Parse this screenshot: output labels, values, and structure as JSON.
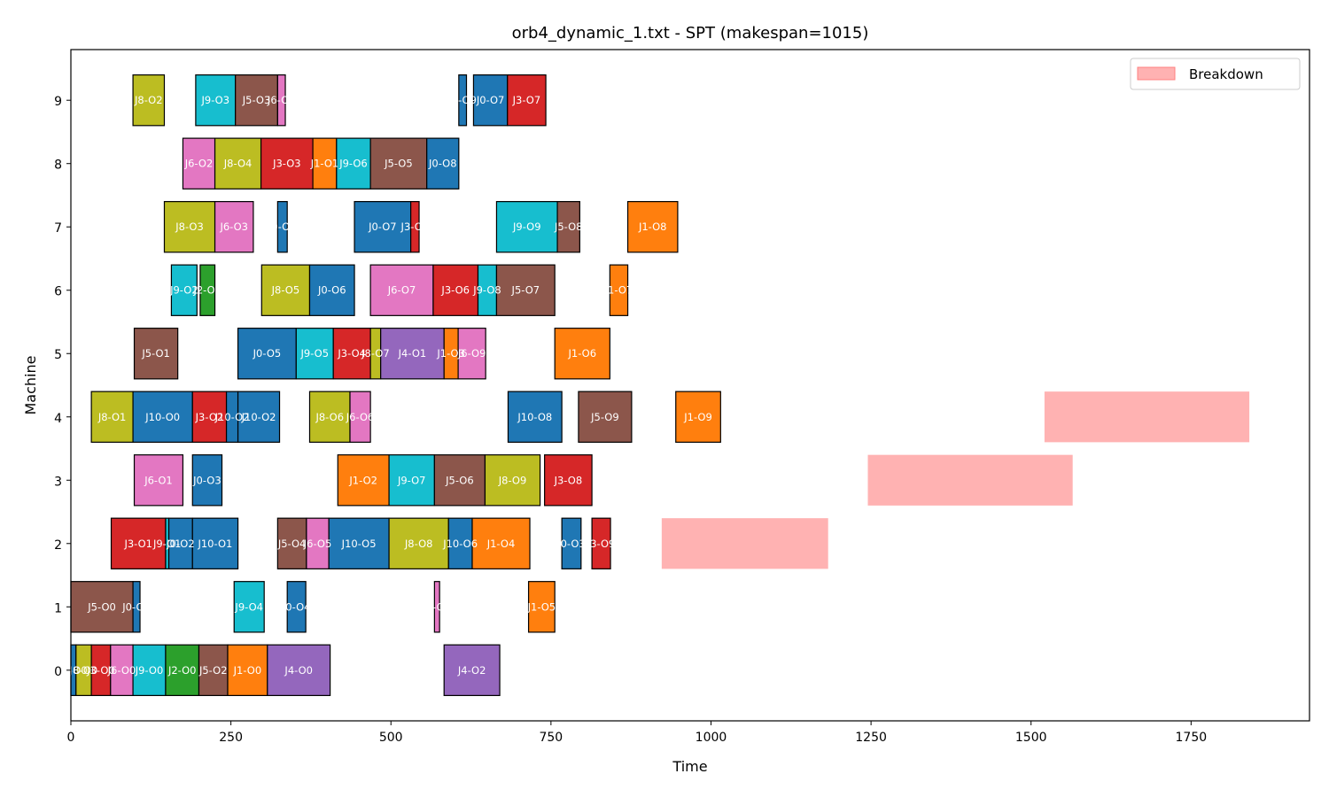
{
  "chart_data": {
    "type": "gantt",
    "title": "orb4_dynamic_1.txt - SPT (makespan=1015)",
    "xlabel": "Time",
    "ylabel": "Machine",
    "xlim": [
      0,
      1935
    ],
    "ylim": [
      -0.8,
      9.8
    ],
    "xticks": [
      0,
      250,
      500,
      750,
      1000,
      1250,
      1500,
      1750
    ],
    "yticks": [
      0,
      1,
      2,
      3,
      4,
      5,
      6,
      7,
      8,
      9
    ],
    "grid": false,
    "legend": {
      "position": "top-right",
      "entries": [
        {
          "label": "Breakdown",
          "color": "#ffb2b2"
        }
      ]
    },
    "job_colors": {
      "J0": "#1f77b4",
      "J1": "#ff7f0e",
      "J2": "#2ca02c",
      "J3": "#d62728",
      "J4": "#9467bd",
      "J5": "#8c564b",
      "J6": "#e377c2",
      "J7": "#7f7f7f",
      "J8": "#bcbd22",
      "J9": "#17becf",
      "J10": "#1f77b4"
    },
    "operations": [
      {
        "machine": 0,
        "job": "J0",
        "start": 0,
        "end": 8,
        "label": "J0-O0"
      },
      {
        "machine": 0,
        "job": "J8",
        "start": 8,
        "end": 32,
        "label": "J8-O0"
      },
      {
        "machine": 0,
        "job": "J3",
        "start": 32,
        "end": 62,
        "label": "J3-O0"
      },
      {
        "machine": 0,
        "job": "J6",
        "start": 62,
        "end": 97,
        "label": "J6-O0"
      },
      {
        "machine": 0,
        "job": "J9",
        "start": 97,
        "end": 148,
        "label": "J9-O0"
      },
      {
        "machine": 0,
        "job": "J2",
        "start": 148,
        "end": 200,
        "label": "J2-O0"
      },
      {
        "machine": 0,
        "job": "J5",
        "start": 200,
        "end": 245,
        "label": "J5-O2"
      },
      {
        "machine": 0,
        "job": "J1",
        "start": 245,
        "end": 307,
        "label": "J1-O0"
      },
      {
        "machine": 0,
        "job": "J4",
        "start": 307,
        "end": 405,
        "label": "J4-O0"
      },
      {
        "machine": 0,
        "job": "J4",
        "start": 583,
        "end": 670,
        "label": "J4-O2"
      },
      {
        "machine": 1,
        "job": "J5",
        "start": 0,
        "end": 97,
        "label": "J5-O0"
      },
      {
        "machine": 1,
        "job": "J0",
        "start": 97,
        "end": 108,
        "label": "J0-O1"
      },
      {
        "machine": 1,
        "job": "J9",
        "start": 255,
        "end": 302,
        "label": "J9-O4"
      },
      {
        "machine": 1,
        "job": "J0",
        "start": 338,
        "end": 367,
        "label": "J0-O4"
      },
      {
        "machine": 1,
        "job": "J6",
        "start": 568,
        "end": 576,
        "label": "J6-O6"
      },
      {
        "machine": 1,
        "job": "J1",
        "start": 715,
        "end": 756,
        "label": "J1-O5"
      },
      {
        "machine": 2,
        "job": "J3",
        "start": 63,
        "end": 148,
        "label": "J3-O1"
      },
      {
        "machine": 2,
        "job": "J9",
        "start": 148,
        "end": 153,
        "label": "J9-O1"
      },
      {
        "machine": 2,
        "job": "J0",
        "start": 153,
        "end": 190,
        "label": "J0-O2"
      },
      {
        "machine": 2,
        "job": "J10",
        "start": 190,
        "end": 261,
        "label": "J10-O1"
      },
      {
        "machine": 2,
        "job": "J5",
        "start": 323,
        "end": 368,
        "label": "J5-O4"
      },
      {
        "machine": 2,
        "job": "J6",
        "start": 368,
        "end": 403,
        "label": "J6-O5"
      },
      {
        "machine": 2,
        "job": "J10",
        "start": 403,
        "end": 497,
        "label": "J10-O5"
      },
      {
        "machine": 2,
        "job": "J8",
        "start": 497,
        "end": 590,
        "label": "J8-O8"
      },
      {
        "machine": 2,
        "job": "J10",
        "start": 590,
        "end": 627,
        "label": "J10-O6"
      },
      {
        "machine": 2,
        "job": "J1",
        "start": 627,
        "end": 717,
        "label": "J1-O4"
      },
      {
        "machine": 2,
        "job": "J0",
        "start": 767,
        "end": 797,
        "label": "J0-O3"
      },
      {
        "machine": 2,
        "job": "J3",
        "start": 814,
        "end": 843,
        "label": "J3-O9"
      },
      {
        "machine": 3,
        "job": "J6",
        "start": 99,
        "end": 175,
        "label": "J6-O1"
      },
      {
        "machine": 3,
        "job": "J0",
        "start": 190,
        "end": 236,
        "label": "J0-O3"
      },
      {
        "machine": 3,
        "job": "J1",
        "start": 417,
        "end": 497,
        "label": "J1-O2"
      },
      {
        "machine": 3,
        "job": "J9",
        "start": 497,
        "end": 568,
        "label": "J9-O7"
      },
      {
        "machine": 3,
        "job": "J5",
        "start": 568,
        "end": 647,
        "label": "J5-O6"
      },
      {
        "machine": 3,
        "job": "J8",
        "start": 647,
        "end": 733,
        "label": "J8-O9"
      },
      {
        "machine": 3,
        "job": "J3",
        "start": 740,
        "end": 814,
        "label": "J3-O8"
      },
      {
        "machine": 4,
        "job": "J8",
        "start": 32,
        "end": 97,
        "label": "J8-O1"
      },
      {
        "machine": 4,
        "job": "J10",
        "start": 97,
        "end": 190,
        "label": "J10-O0"
      },
      {
        "machine": 4,
        "job": "J3",
        "start": 190,
        "end": 243,
        "label": "J3-O2"
      },
      {
        "machine": 4,
        "job": "J10",
        "start": 243,
        "end": 261,
        "label": "J10-O2"
      },
      {
        "machine": 4,
        "job": "J10",
        "start": 261,
        "end": 326,
        "label": "J10-O2"
      },
      {
        "machine": 4,
        "job": "J8",
        "start": 373,
        "end": 436,
        "label": "J8-O6"
      },
      {
        "machine": 4,
        "job": "J6",
        "start": 436,
        "end": 468,
        "label": "J6-O6"
      },
      {
        "machine": 4,
        "job": "J10",
        "start": 683,
        "end": 767,
        "label": "J10-O8"
      },
      {
        "machine": 4,
        "job": "J5",
        "start": 793,
        "end": 876,
        "label": "J5-O9"
      },
      {
        "machine": 4,
        "job": "J1",
        "start": 945,
        "end": 1015,
        "label": "J1-O9"
      },
      {
        "machine": 5,
        "job": "J5",
        "start": 99,
        "end": 167,
        "label": "J5-O1"
      },
      {
        "machine": 5,
        "job": "J0",
        "start": 261,
        "end": 352,
        "label": "J0-O5"
      },
      {
        "machine": 5,
        "job": "J9",
        "start": 352,
        "end": 410,
        "label": "J9-O5"
      },
      {
        "machine": 5,
        "job": "J3",
        "start": 410,
        "end": 468,
        "label": "J3-O4"
      },
      {
        "machine": 5,
        "job": "J8",
        "start": 468,
        "end": 484,
        "label": "J8-O7"
      },
      {
        "machine": 5,
        "job": "J4",
        "start": 484,
        "end": 583,
        "label": "J4-O1"
      },
      {
        "machine": 5,
        "job": "J1",
        "start": 583,
        "end": 605,
        "label": "J1-O3"
      },
      {
        "machine": 5,
        "job": "J6",
        "start": 605,
        "end": 648,
        "label": "J6-O9"
      },
      {
        "machine": 5,
        "job": "J1",
        "start": 756,
        "end": 842,
        "label": "J1-O6"
      },
      {
        "machine": 6,
        "job": "J9",
        "start": 157,
        "end": 197,
        "label": "J9-O2"
      },
      {
        "machine": 6,
        "job": "J2",
        "start": 202,
        "end": 225,
        "label": "J2-O1"
      },
      {
        "machine": 6,
        "job": "J8",
        "start": 298,
        "end": 373,
        "label": "J8-O5"
      },
      {
        "machine": 6,
        "job": "J0",
        "start": 373,
        "end": 443,
        "label": "J0-O6"
      },
      {
        "machine": 6,
        "job": "J6",
        "start": 468,
        "end": 566,
        "label": "J6-O7"
      },
      {
        "machine": 6,
        "job": "J3",
        "start": 566,
        "end": 636,
        "label": "J3-O6"
      },
      {
        "machine": 6,
        "job": "J9",
        "start": 636,
        "end": 665,
        "label": "J9-O8"
      },
      {
        "machine": 6,
        "job": "J5",
        "start": 665,
        "end": 756,
        "label": "J5-O7"
      },
      {
        "machine": 6,
        "job": "J1",
        "start": 842,
        "end": 870,
        "label": "J1-O7"
      },
      {
        "machine": 7,
        "job": "J8",
        "start": 146,
        "end": 225,
        "label": "J8-O3"
      },
      {
        "machine": 7,
        "job": "J6",
        "start": 225,
        "end": 285,
        "label": "J6-O3"
      },
      {
        "machine": 7,
        "job": "J0",
        "start": 323,
        "end": 338,
        "label": "J0-O7"
      },
      {
        "machine": 7,
        "job": "J0",
        "start": 443,
        "end": 531,
        "label": "J0-O7"
      },
      {
        "machine": 7,
        "job": "J3",
        "start": 531,
        "end": 544,
        "label": "J3-O7"
      },
      {
        "machine": 7,
        "job": "J9",
        "start": 665,
        "end": 760,
        "label": "J9-O9"
      },
      {
        "machine": 7,
        "job": "J5",
        "start": 760,
        "end": 795,
        "label": "J5-O8"
      },
      {
        "machine": 7,
        "job": "J1",
        "start": 870,
        "end": 948,
        "label": "J1-O8"
      },
      {
        "machine": 8,
        "job": "J6",
        "start": 175,
        "end": 225,
        "label": "J6-O2"
      },
      {
        "machine": 8,
        "job": "J8",
        "start": 225,
        "end": 297,
        "label": "J8-O4"
      },
      {
        "machine": 8,
        "job": "J3",
        "start": 297,
        "end": 378,
        "label": "J3-O3"
      },
      {
        "machine": 8,
        "job": "J1",
        "start": 378,
        "end": 415,
        "label": "J1-O1"
      },
      {
        "machine": 8,
        "job": "J9",
        "start": 415,
        "end": 468,
        "label": "J9-O6"
      },
      {
        "machine": 8,
        "job": "J5",
        "start": 468,
        "end": 556,
        "label": "J5-O5"
      },
      {
        "machine": 8,
        "job": "J0",
        "start": 556,
        "end": 606,
        "label": "J0-O8"
      },
      {
        "machine": 9,
        "job": "J8",
        "start": 97,
        "end": 146,
        "label": "J8-O2"
      },
      {
        "machine": 9,
        "job": "J9",
        "start": 195,
        "end": 257,
        "label": "J9-O3"
      },
      {
        "machine": 9,
        "job": "J5",
        "start": 257,
        "end": 323,
        "label": "J5-O3"
      },
      {
        "machine": 9,
        "job": "J6",
        "start": 323,
        "end": 335,
        "label": "J6-O4"
      },
      {
        "machine": 9,
        "job": "J0",
        "start": 606,
        "end": 618,
        "label": "J0-O9"
      },
      {
        "machine": 9,
        "job": "J0",
        "start": 629,
        "end": 682,
        "label": "J0-O7"
      },
      {
        "machine": 9,
        "job": "J3",
        "start": 682,
        "end": 742,
        "label": "J3-O7"
      }
    ],
    "breakdowns": [
      {
        "machine": 2,
        "start": 923,
        "end": 1183
      },
      {
        "machine": 3,
        "start": 1245,
        "end": 1565
      },
      {
        "machine": 4,
        "start": 1521,
        "end": 1841
      }
    ]
  }
}
